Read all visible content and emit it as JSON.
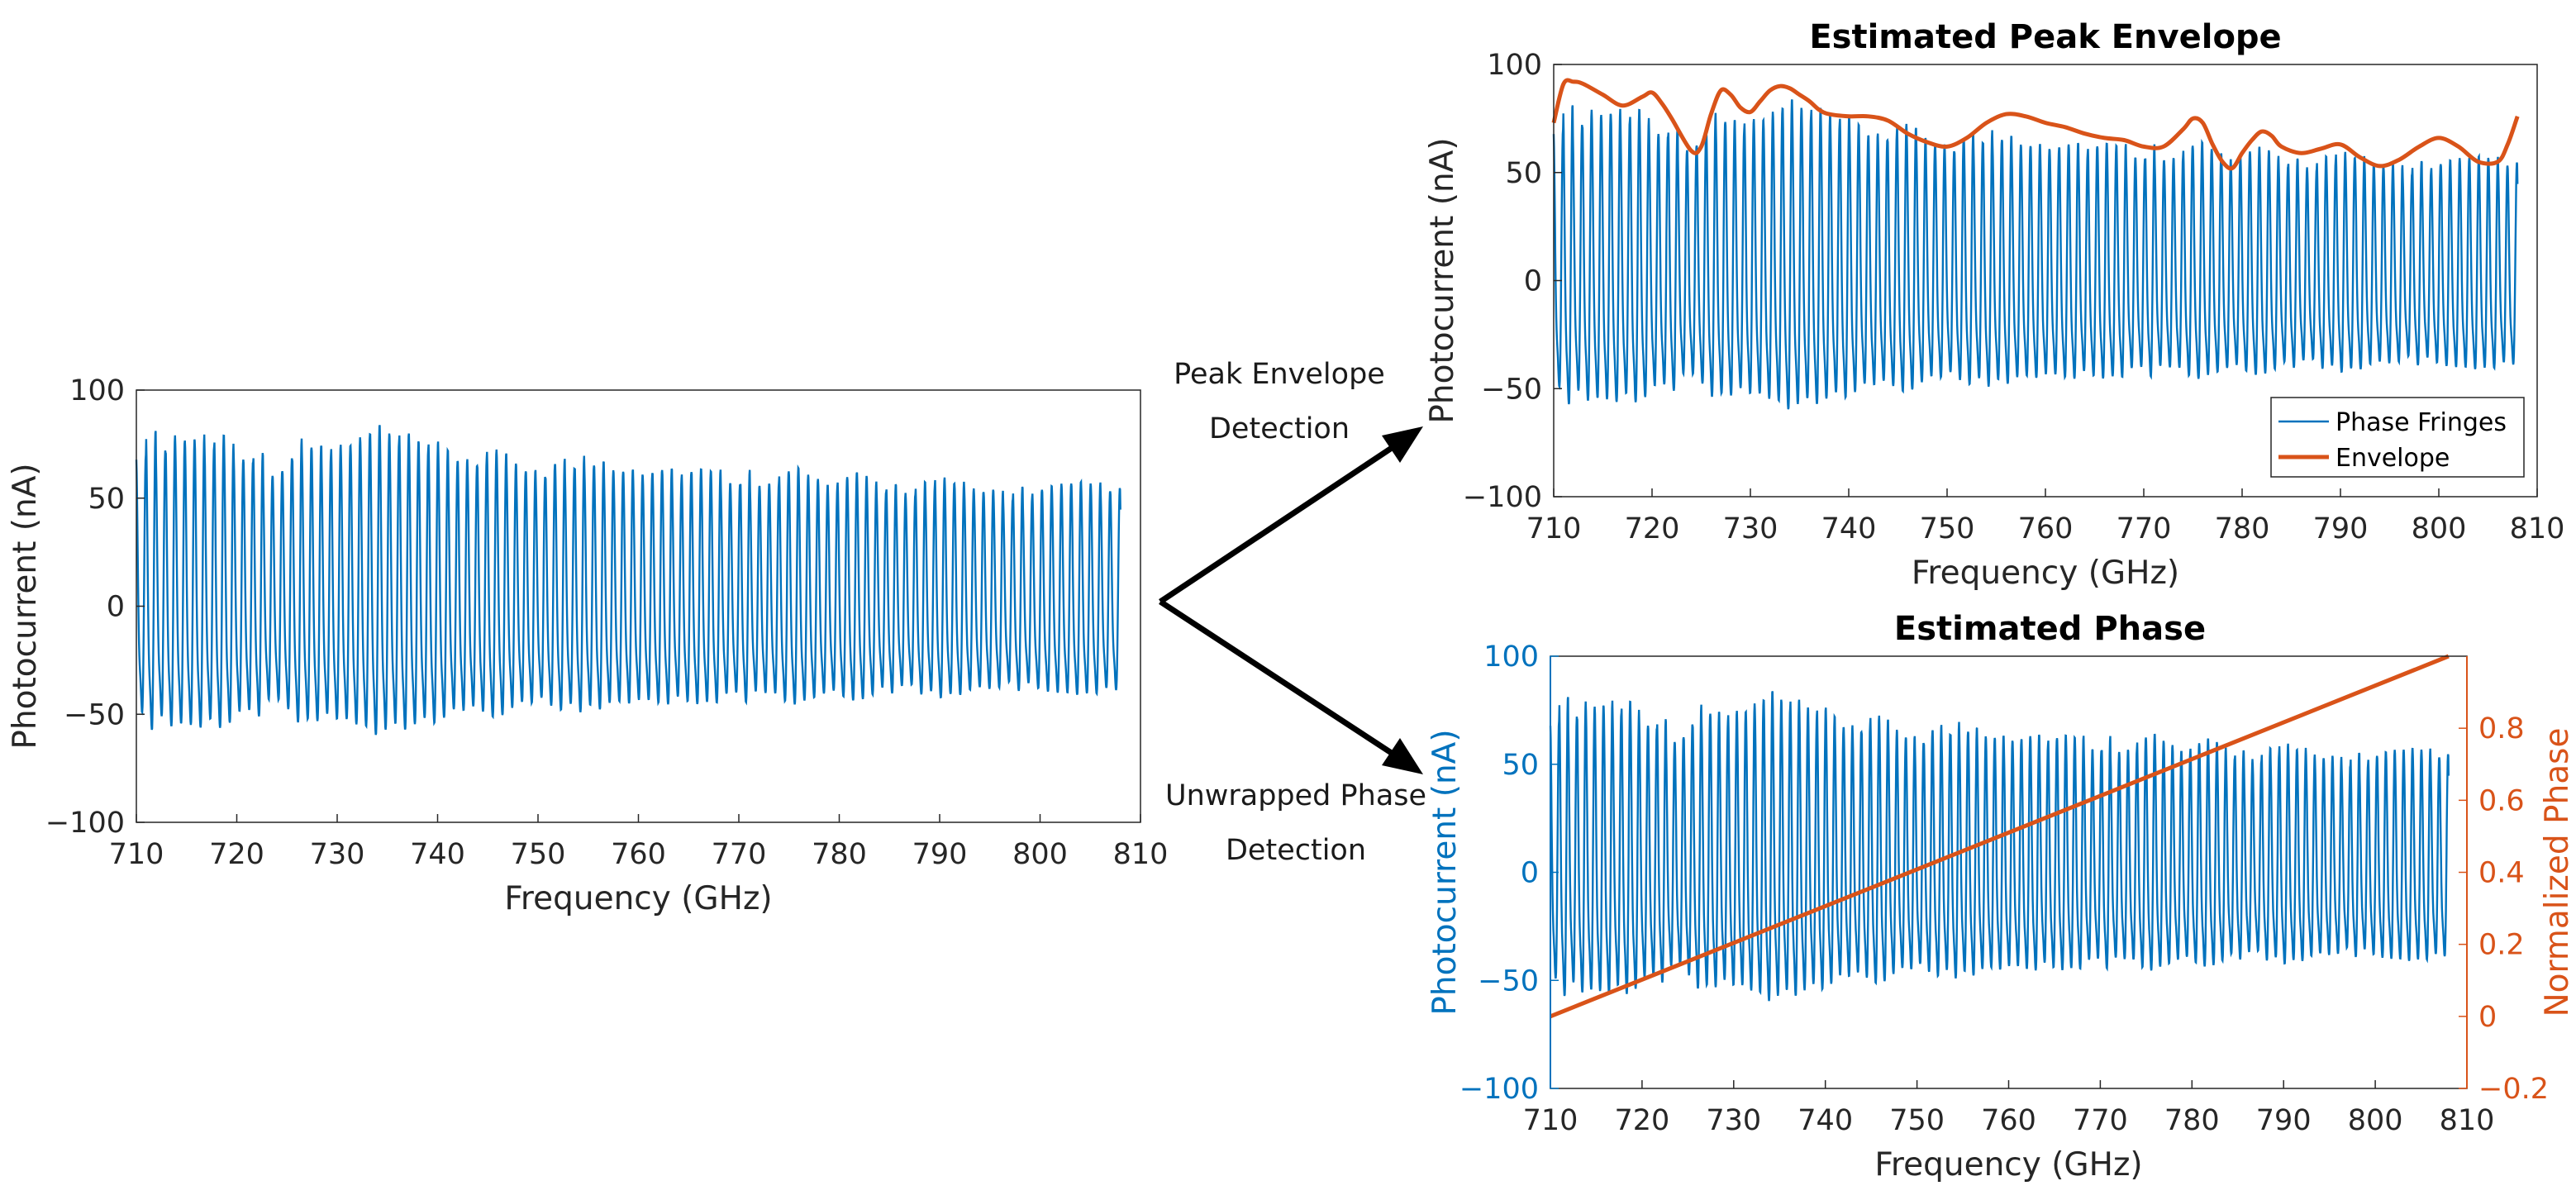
{
  "annotations": {
    "upper_line1": "Peak Envelope",
    "upper_line2": "Detection",
    "lower_line1": "Unwrapped Phase",
    "lower_line2": "Detection"
  },
  "colors": {
    "fringe": "#0072BD",
    "envelope": "#D95319",
    "axis": "#262626",
    "arrow": "#000000"
  },
  "chart_data": [
    {
      "id": "raw",
      "type": "line",
      "title": "",
      "xlabel": "Frequency (GHz)",
      "ylabel": "Photocurrent (nA)",
      "xlim": [
        710,
        810
      ],
      "ylim": [
        -100,
        100
      ],
      "xticks": [
        710,
        720,
        730,
        740,
        750,
        760,
        770,
        780,
        790,
        800,
        810
      ],
      "yticks": [
        100,
        50,
        0,
        -50,
        -100
      ],
      "ytick_labels": [
        "100",
        "50",
        "0",
        "−50",
        "−100"
      ],
      "series": [
        {
          "kind": "fringes",
          "x_range": [
            710,
            808
          ],
          "fringe_period_ghz": 0.97,
          "amplitude_nodes": {
            "x": [
              710,
              714,
              719,
              724,
              727,
              730,
              734,
              738,
              742,
              746,
              750,
              756,
              762,
              768,
              772,
              776,
              779,
              782,
              786,
              790,
              794,
              798,
              803,
              808
            ],
            "y": [
              82,
              86,
              85,
              70,
              82,
              78,
              88,
              80,
              76,
              74,
              70,
              74,
              70,
              66,
              66,
              68,
              60,
              64,
              60,
              62,
              58,
              58,
              60,
              58
            ]
          }
        }
      ]
    },
    {
      "id": "envelope",
      "type": "line",
      "title": "Estimated Peak Envelope",
      "xlabel": "Frequency (GHz)",
      "ylabel": "Photocurrent (nA)",
      "xlim": [
        710,
        810
      ],
      "ylim": [
        -100,
        100
      ],
      "xticks": [
        710,
        720,
        730,
        740,
        750,
        760,
        770,
        780,
        790,
        800,
        810
      ],
      "yticks": [
        100,
        50,
        0,
        -50,
        -100
      ],
      "ytick_labels": [
        "100",
        "50",
        "0",
        "−50",
        "−100"
      ],
      "legend": {
        "position": "bottom-right",
        "entries": [
          "Phase Fringes",
          "Envelope"
        ]
      },
      "series": [
        {
          "name": "Phase Fringes",
          "kind": "fringes",
          "x_range": [
            710,
            808
          ],
          "fringe_period_ghz": 0.97,
          "amplitude_nodes": {
            "x": [
              710,
              714,
              719,
              724,
              727,
              730,
              734,
              738,
              742,
              746,
              750,
              756,
              762,
              768,
              772,
              776,
              779,
              782,
              786,
              790,
              794,
              798,
              803,
              808
            ],
            "y": [
              82,
              86,
              85,
              70,
              82,
              78,
              88,
              80,
              76,
              74,
              70,
              74,
              70,
              66,
              66,
              68,
              60,
              64,
              60,
              62,
              58,
              58,
              60,
              58
            ]
          }
        },
        {
          "name": "Envelope",
          "kind": "line",
          "x": [
            710,
            711,
            712,
            713,
            715,
            717,
            719,
            720,
            721,
            722,
            724,
            725,
            726,
            727,
            728,
            729,
            730,
            731,
            732,
            733,
            734,
            735,
            736,
            737,
            738,
            740,
            742,
            744,
            746,
            748,
            750,
            752,
            754,
            756,
            758,
            760,
            762,
            764,
            766,
            768,
            770,
            772,
            774,
            775,
            776,
            777,
            778,
            779,
            780,
            781,
            782,
            783,
            784,
            786,
            788,
            790,
            792,
            794,
            796,
            798,
            800,
            802,
            804,
            806,
            807,
            808
          ],
          "y": [
            73,
            91,
            92,
            91,
            86,
            81,
            85,
            87,
            82,
            75,
            60,
            62,
            77,
            88,
            86,
            80,
            78,
            83,
            88,
            90,
            89,
            86,
            83,
            79,
            77,
            76,
            76,
            74,
            68,
            64,
            62,
            66,
            73,
            77,
            76,
            73,
            71,
            68,
            66,
            65,
            62,
            62,
            70,
            75,
            73,
            63,
            55,
            52,
            59,
            65,
            69,
            67,
            62,
            59,
            61,
            63,
            57,
            53,
            56,
            62,
            66,
            62,
            55,
            55,
            63,
            76
          ]
        }
      ]
    },
    {
      "id": "phase",
      "type": "line",
      "title": "Estimated Phase",
      "xlabel": "Frequency (GHz)",
      "ylabel": "Photocurrent (nA)",
      "y2label": "Normalized Phase",
      "xlim": [
        710,
        810
      ],
      "ylim": [
        -100,
        100
      ],
      "y2lim": [
        -0.2,
        1.0
      ],
      "xticks": [
        710,
        720,
        730,
        740,
        750,
        760,
        770,
        780,
        790,
        800,
        810
      ],
      "yticks": [
        100,
        50,
        0,
        -50,
        -100
      ],
      "ytick_labels": [
        "100",
        "50",
        "0",
        "−50",
        "−100"
      ],
      "y2ticks": [
        0.8,
        0.6,
        0.4,
        0.2,
        0,
        -0.2
      ],
      "y2tick_labels": [
        "0.8",
        "0.6",
        "0.4",
        "0.2",
        "0",
        "−0.2"
      ],
      "series": [
        {
          "kind": "fringes",
          "axis": "left",
          "x_range": [
            710,
            808
          ],
          "fringe_period_ghz": 0.97,
          "amplitude_nodes": {
            "x": [
              710,
              714,
              719,
              724,
              727,
              730,
              734,
              738,
              742,
              746,
              750,
              756,
              762,
              768,
              772,
              776,
              779,
              782,
              786,
              790,
              794,
              798,
              803,
              808
            ],
            "y": [
              82,
              86,
              85,
              70,
              82,
              78,
              88,
              80,
              76,
              74,
              70,
              74,
              70,
              66,
              66,
              68,
              60,
              64,
              60,
              62,
              58,
              58,
              60,
              58
            ]
          }
        },
        {
          "kind": "line",
          "axis": "right",
          "x": [
            710,
            808
          ],
          "y": [
            0.0,
            1.0
          ]
        }
      ]
    }
  ]
}
